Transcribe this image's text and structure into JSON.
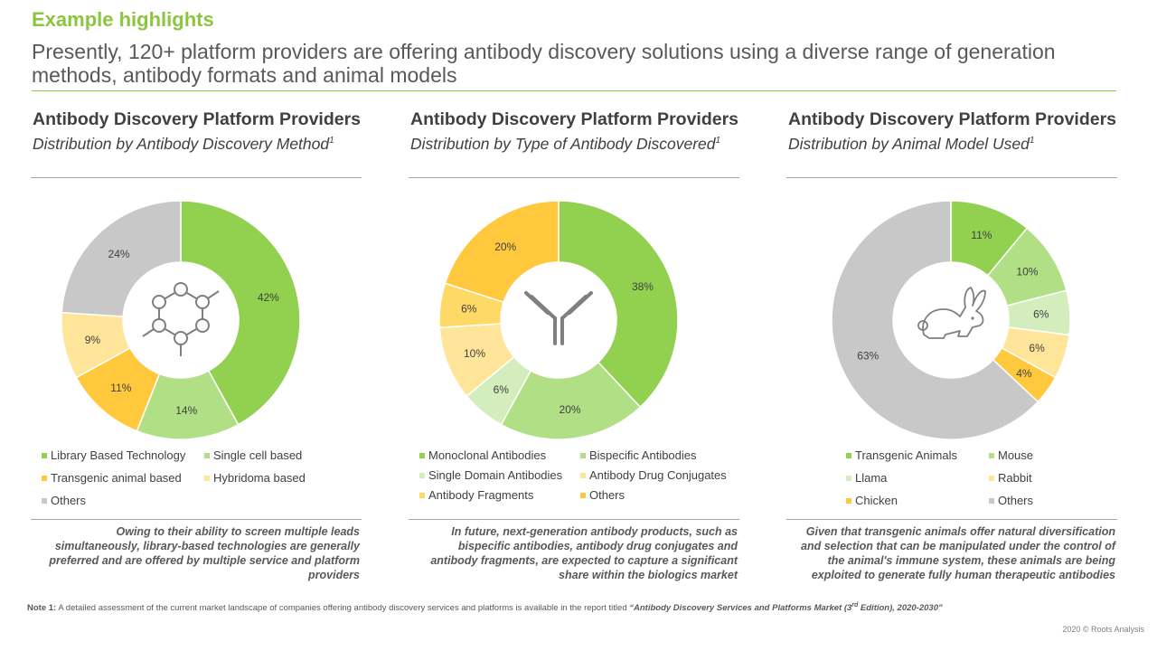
{
  "header": {
    "kicker": "Example highlights",
    "headline": "Presently, 120+ platform providers are offering antibody discovery solutions using a diverse range of generation methods, antibody formats and animal models"
  },
  "colors": {
    "accent": "#8CC63F",
    "green_dark": "#92D050",
    "green_light": "#B1DF86",
    "green_pale": "#D3EDBC",
    "yellow_dark": "#FFC83D",
    "yellow_mid": "#FFD966",
    "yellow_pale": "#FFE599",
    "grey": "#C8C8C8"
  },
  "panels": [
    {
      "title": "Antibody Discovery Platform Providers",
      "subtitle": "Distribution by Antibody Discovery Method",
      "footnote_mark": "1",
      "center_icon": "molecule-icon",
      "takeaway": "Owing to their ability to screen multiple leads simultaneously, library-based technologies are generally preferred and are offered by multiple service and platform providers"
    },
    {
      "title": "Antibody Discovery Platform Providers",
      "subtitle": "Distribution by Type of Antibody Discovered",
      "footnote_mark": "1",
      "center_icon": "antibody-icon",
      "takeaway": "In future, next-generation antibody products, such as bispecific antibodies, antibody drug conjugates and antibody fragments, are expected to capture a significant share within the biologics market"
    },
    {
      "title": "Antibody Discovery Platform Providers",
      "subtitle": "Distribution by Animal Model Used",
      "footnote_mark": "1",
      "center_icon": "rabbit-icon",
      "takeaway": "Given that transgenic animals offer natural diversification and selection that can be manipulated under the control of the animal's immune system, these animals are being exploited to generate fully human therapeutic antibodies"
    }
  ],
  "chart_data": [
    {
      "type": "pie",
      "donut": true,
      "title": "Antibody Discovery Platform Providers",
      "subtitle": "Distribution by Antibody Discovery Method",
      "categories": [
        "Library Based Technology",
        "Single cell based",
        "Transgenic animal based",
        "Hybridoma based",
        "Others"
      ],
      "values": [
        42,
        14,
        11,
        9,
        24
      ],
      "value_suffix": "%",
      "colors": [
        "#92D050",
        "#B1DF86",
        "#FFC83D",
        "#FFE599",
        "#C8C8C8"
      ],
      "start_angle_deg": 0,
      "direction": "clockwise",
      "legend_position": "bottom"
    },
    {
      "type": "pie",
      "donut": true,
      "title": "Antibody Discovery Platform Providers",
      "subtitle": "Distribution by Type of Antibody Discovered",
      "categories": [
        "Monoclonal Antibodies",
        "Bispecific Antibodies",
        "Single Domain Antibodies",
        "Antibody Drug Conjugates",
        "Antibody Fragments",
        "Others"
      ],
      "values": [
        38,
        20,
        6,
        10,
        6,
        20
      ],
      "value_suffix": "%",
      "colors": [
        "#92D050",
        "#B1DF86",
        "#D3EDBC",
        "#FFE599",
        "#FFD966",
        "#FFC83D"
      ],
      "start_angle_deg": 0,
      "direction": "clockwise",
      "legend_position": "bottom"
    },
    {
      "type": "pie",
      "donut": true,
      "title": "Antibody Discovery Platform Providers",
      "subtitle": "Distribution by Animal Model Used",
      "categories": [
        "Transgenic Animals",
        "Mouse",
        "Llama",
        "Rabbit",
        "Chicken",
        "Others"
      ],
      "values": [
        11,
        10,
        6,
        6,
        4,
        63
      ],
      "value_suffix": "%",
      "colors": [
        "#92D050",
        "#B1DF86",
        "#D3EDBC",
        "#FFE599",
        "#FFC83D",
        "#C8C8C8"
      ],
      "start_angle_deg": 0,
      "direction": "clockwise",
      "legend_position": "bottom"
    }
  ],
  "footer": {
    "note_label": "Note 1:",
    "note_text": "A detailed assessment of the current market landscape of companies offering antibody discovery services and platforms is available in the report titled",
    "note_report_title_a": "“Antibody Discovery Services and Platforms Market (3",
    "note_report_sup": "rd",
    "note_report_title_b": " Edition), 2020-2030”",
    "copyright": "2020 © Roots Analysis"
  }
}
